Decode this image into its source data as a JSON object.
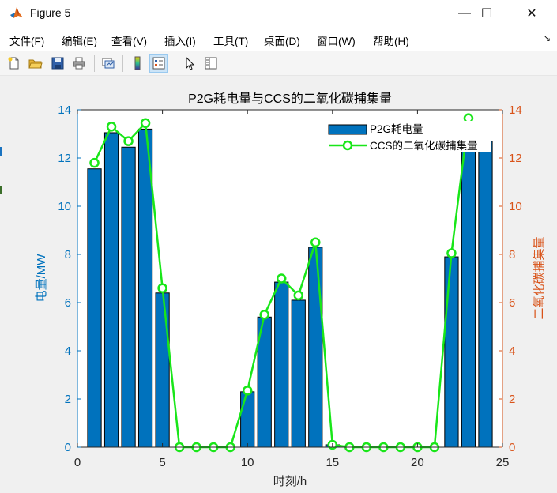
{
  "window": {
    "title": "Figure 5",
    "controls": {
      "minimize": "—",
      "maximize": "☐",
      "close": "✕"
    }
  },
  "menu": {
    "items": [
      "文件(F)",
      "编辑(E)",
      "查看(V)",
      "插入(I)",
      "工具(T)",
      "桌面(D)",
      "窗口(W)",
      "帮助(H)"
    ],
    "overflow_icon": "menu-arrow-icon"
  },
  "toolbar": {
    "buttons": [
      {
        "name": "new-figure",
        "icon": "new-file-icon"
      },
      {
        "name": "open-file",
        "icon": "folder-open-icon"
      },
      {
        "name": "save",
        "icon": "save-icon"
      },
      {
        "name": "print",
        "icon": "print-icon"
      },
      {
        "name": "link-plot",
        "icon": "link-plot-icon"
      },
      {
        "name": "colorbar",
        "icon": "colorbar-icon"
      },
      {
        "name": "legend",
        "icon": "legend-icon",
        "active": true
      },
      {
        "name": "edit-plot",
        "icon": "pointer-icon"
      },
      {
        "name": "plot-browser",
        "icon": "plot-browser-icon"
      }
    ]
  },
  "colors": {
    "bar_fill": "#0072bd",
    "bar_edge": "#000000",
    "line": "#19e619",
    "left_axis": "#0072bd",
    "right_axis": "#d95319",
    "axes_bg": "#ffffff",
    "figure_bg": "#f0f0f0"
  },
  "chart_data": {
    "type": "bar",
    "title": "P2G耗电量与CCS的二氧化碳捕集量",
    "xlabel": "时刻/h",
    "ylabel_left": "电量/MW",
    "ylabel_right": "二氧化碳捕集量",
    "xlim": [
      0,
      25
    ],
    "ylim_left": [
      0,
      14
    ],
    "ylim_right": [
      0,
      14
    ],
    "xticks": [
      "0",
      "5",
      "10",
      "15",
      "20",
      "25"
    ],
    "yticks_left": [
      "0",
      "2",
      "4",
      "6",
      "8",
      "10",
      "12",
      "14"
    ],
    "yticks_right": [
      "0",
      "2",
      "4",
      "6",
      "8",
      "10",
      "12",
      "14"
    ],
    "x": [
      1,
      2,
      3,
      4,
      5,
      6,
      7,
      8,
      9,
      10,
      11,
      12,
      13,
      14,
      15,
      16,
      17,
      18,
      19,
      20,
      21,
      22,
      23,
      24
    ],
    "series": [
      {
        "name": "P2G耗电量",
        "type": "bar",
        "axis": "left",
        "values": [
          11.55,
          13.05,
          12.45,
          13.2,
          6.4,
          0,
          0,
          0,
          0,
          2.3,
          5.4,
          6.85,
          6.1,
          8.3,
          0.1,
          0,
          0,
          0,
          0,
          0,
          0,
          7.9,
          13.35,
          12.7
        ]
      },
      {
        "name": "CCS的二氧化碳捕集量",
        "type": "line",
        "axis": "right",
        "marker": "circle",
        "values": [
          11.8,
          13.3,
          12.7,
          13.45,
          6.6,
          0,
          0,
          0,
          0,
          2.35,
          5.5,
          7.0,
          6.3,
          8.5,
          0.1,
          0,
          0,
          0,
          0,
          0,
          0,
          8.05,
          13.65,
          12.95
        ]
      }
    ],
    "legend_position": "top-right",
    "grid": false
  }
}
